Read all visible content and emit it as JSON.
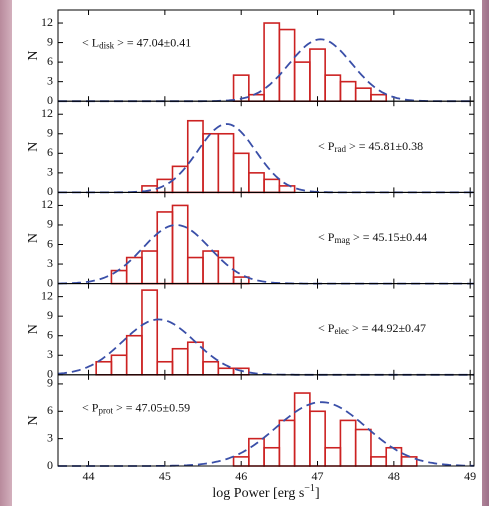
{
  "chart_data": [
    {
      "type": "histogram",
      "ylabel": "N",
      "annotation": {
        "pre": "< L",
        "sub": "disk",
        "post": " > = 47.04±0.41"
      },
      "bins": [
        45.9,
        46.1,
        46.3,
        46.5,
        46.7,
        46.9,
        47.1,
        47.3,
        47.5,
        47.7,
        47.9
      ],
      "values": [
        4,
        1,
        12,
        11,
        6,
        8,
        4,
        3,
        2,
        1
      ],
      "color": "#cc2222",
      "fit": {
        "mean": 47.04,
        "sigma": 0.41,
        "peak": 9.5,
        "color": "#3a4fa8"
      },
      "xlim": [
        43.6,
        49.05
      ],
      "ylim": [
        0,
        14
      ],
      "yticks": [
        0,
        3,
        6,
        9,
        12
      ]
    },
    {
      "type": "histogram",
      "ylabel": "N",
      "annotation": {
        "pre": "< P",
        "sub": "rad",
        "post": " > = 45.81±0.38"
      },
      "bins": [
        44.7,
        44.9,
        45.1,
        45.3,
        45.5,
        45.7,
        45.9,
        46.1,
        46.3,
        46.5,
        46.7
      ],
      "values": [
        1,
        2,
        4,
        11,
        9,
        9,
        6,
        3,
        2,
        1
      ],
      "color": "#cc2222",
      "fit": {
        "mean": 45.81,
        "sigma": 0.38,
        "peak": 10.5,
        "color": "#3a4fa8"
      },
      "xlim": [
        43.6,
        49.05
      ],
      "ylim": [
        0,
        14
      ],
      "yticks": [
        0,
        3,
        6,
        9,
        12
      ]
    },
    {
      "type": "histogram",
      "ylabel": "N",
      "annotation": {
        "pre": "< P",
        "sub": "mag",
        "post": " > = 45.15±0.44"
      },
      "bins": [
        44.3,
        44.5,
        44.7,
        44.9,
        45.1,
        45.3,
        45.5,
        45.7,
        45.9,
        46.1
      ],
      "values": [
        2,
        4,
        5,
        11,
        12,
        4,
        5,
        4,
        1
      ],
      "color": "#cc2222",
      "fit": {
        "mean": 45.15,
        "sigma": 0.44,
        "peak": 9,
        "color": "#3a4fa8"
      },
      "xlim": [
        43.6,
        49.05
      ],
      "ylim": [
        0,
        14
      ],
      "yticks": [
        0,
        3,
        6,
        9,
        12
      ]
    },
    {
      "type": "histogram",
      "ylabel": "N",
      "annotation": {
        "pre": "< P",
        "sub": "elec",
        "post": " > = 44.92±0.47"
      },
      "bins": [
        44.1,
        44.3,
        44.5,
        44.7,
        44.9,
        45.1,
        45.3,
        45.5,
        45.7,
        45.9,
        46.1
      ],
      "values": [
        2,
        3,
        6,
        13,
        2,
        4,
        5,
        2,
        1,
        1
      ],
      "color": "#cc2222",
      "fit": {
        "mean": 44.92,
        "sigma": 0.47,
        "peak": 8.5,
        "color": "#3a4fa8"
      },
      "xlim": [
        43.6,
        49.05
      ],
      "ylim": [
        0,
        14
      ],
      "yticks": [
        0,
        3,
        6,
        9,
        12
      ]
    },
    {
      "type": "histogram",
      "ylabel": "N",
      "annotation": {
        "pre": "< P",
        "sub": "prot",
        "post": " > = 47.05±0.59"
      },
      "bins": [
        45.9,
        46.1,
        46.3,
        46.5,
        46.7,
        46.9,
        47.1,
        47.3,
        47.5,
        47.7,
        47.9,
        48.1,
        48.3
      ],
      "values": [
        1,
        3,
        2,
        5,
        8,
        6,
        2,
        5,
        4,
        1,
        2,
        1
      ],
      "color": "#cc2222",
      "fit": {
        "mean": 47.05,
        "sigma": 0.59,
        "peak": 7,
        "color": "#3a4fa8"
      },
      "xlim": [
        43.6,
        49.05
      ],
      "ylim": [
        0,
        10
      ],
      "yticks": [
        0,
        3,
        6,
        9
      ],
      "xticks": [
        44,
        45,
        46,
        47,
        48,
        49
      ],
      "xlabel": {
        "pre": "log Power [erg s",
        "sup": "−1",
        "post": "]"
      }
    }
  ]
}
